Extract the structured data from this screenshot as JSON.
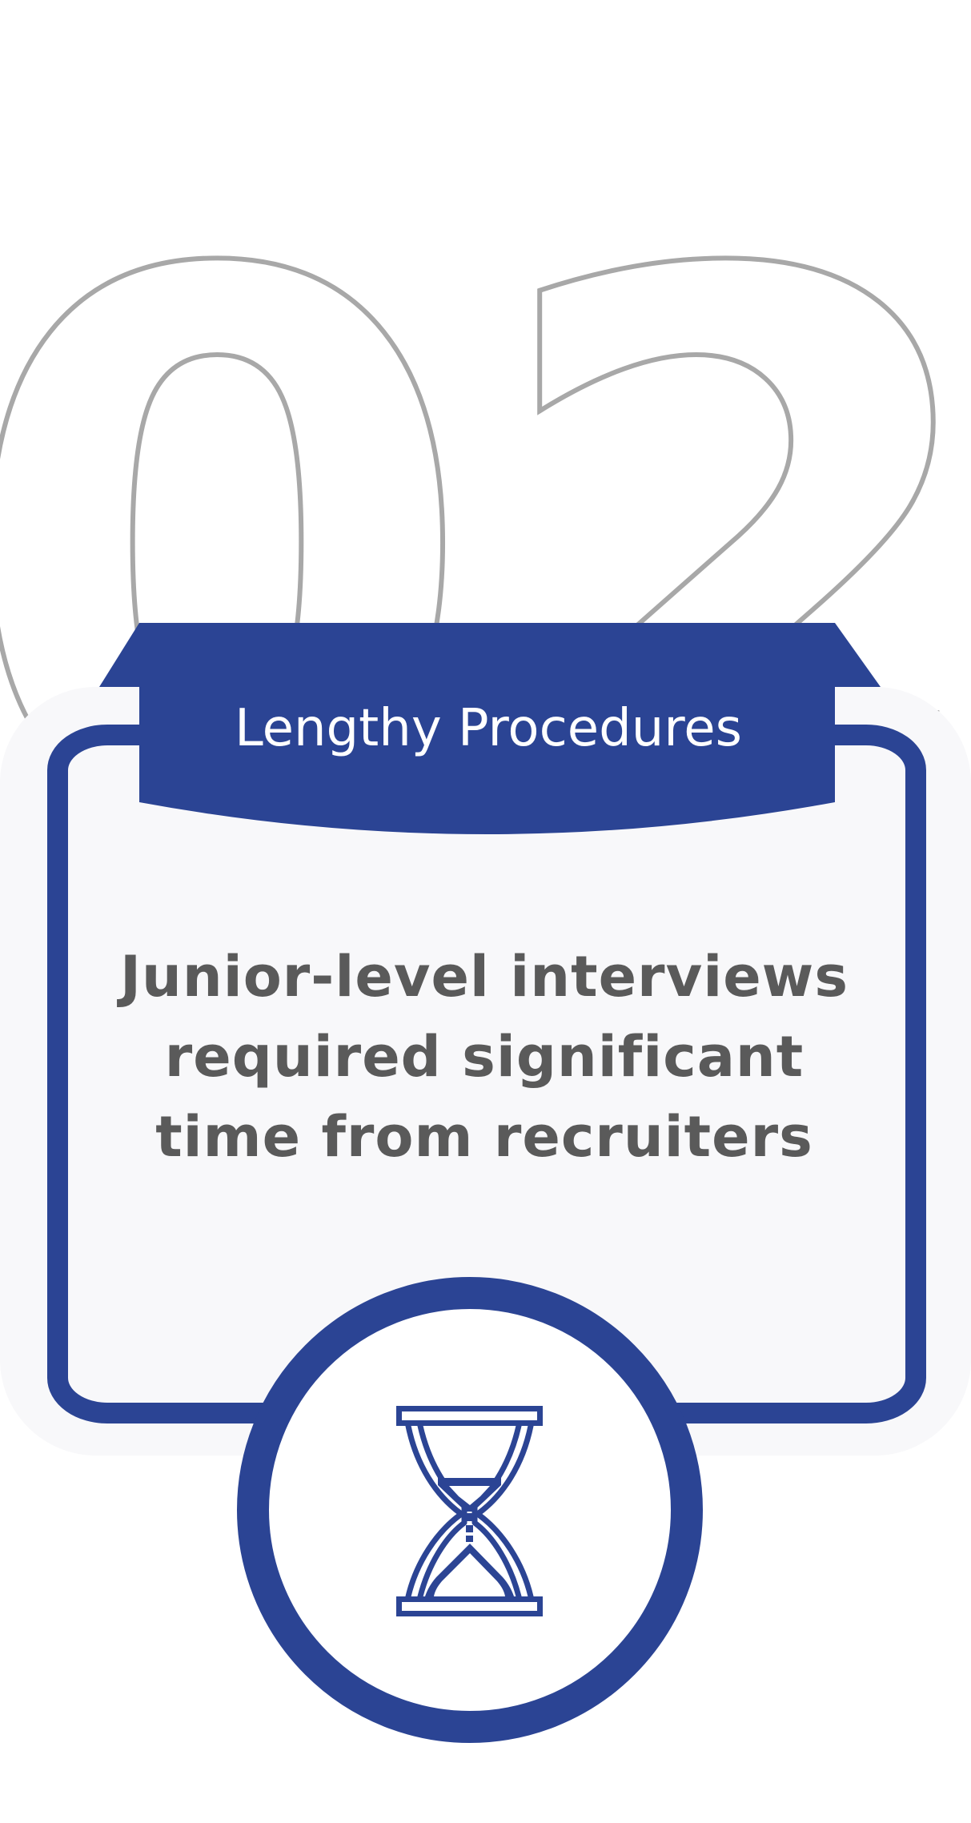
{
  "number": "02",
  "title": "Lengthy Procedures",
  "body": "Junior-level interviews required significant time from recruiters",
  "icon": "hourglass-icon",
  "colors": {
    "accent": "#2b4494",
    "card_background": "#f8f8fa",
    "number_outline": "#a8a8a8",
    "body_text": "#5a5a5a"
  }
}
